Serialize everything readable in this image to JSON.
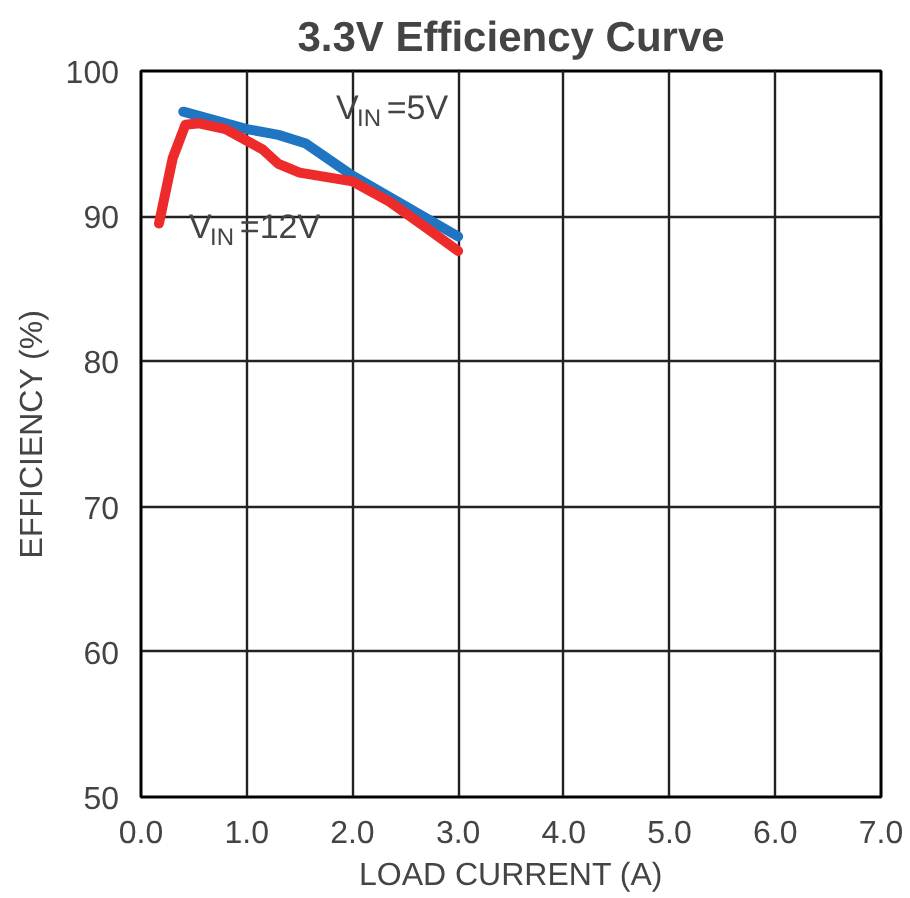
{
  "chart_data": {
    "type": "line",
    "title": "3.3V Efficiency Curve",
    "xlabel": "LOAD CURRENT (A)",
    "ylabel": "EFFICIENCY (%)",
    "xlim": [
      0,
      7
    ],
    "ylim": [
      50,
      100
    ],
    "xticks": [
      {
        "value": 0,
        "label": "0.0"
      },
      {
        "value": 1,
        "label": "1.0"
      },
      {
        "value": 2,
        "label": "2.0"
      },
      {
        "value": 3,
        "label": "3.0"
      },
      {
        "value": 4,
        "label": "4.0"
      },
      {
        "value": 5,
        "label": "5.0"
      },
      {
        "value": 6,
        "label": "6.0"
      },
      {
        "value": 7,
        "label": "7.0"
      }
    ],
    "yticks": [
      50,
      60,
      70,
      80,
      90,
      100
    ],
    "grid": true,
    "legend": false,
    "line_style": "solid",
    "series": [
      {
        "name": "V$_{IN}$=5V",
        "color": "#1f75c1",
        "x": [
          0.4,
          0.7,
          1.0,
          1.3,
          1.56,
          2.0,
          2.5,
          3.0
        ],
        "values": [
          97.2,
          96.6,
          96.0,
          95.6,
          95.0,
          92.8,
          90.7,
          88.6
        ]
      },
      {
        "name": "V$_{IN}$=12V",
        "color": "#ee2b2b",
        "x": [
          0.17,
          0.3,
          0.42,
          0.55,
          0.8,
          1.15,
          1.3,
          1.5,
          2.0,
          2.35,
          2.7,
          3.0
        ],
        "values": [
          89.5,
          94.0,
          96.3,
          96.4,
          96.0,
          94.6,
          93.6,
          93.0,
          92.4,
          91.0,
          89.2,
          87.6
        ]
      }
    ]
  }
}
